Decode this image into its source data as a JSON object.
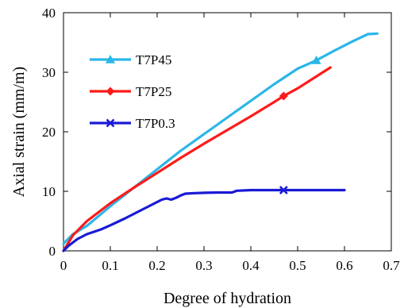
{
  "chart_data": {
    "type": "line",
    "xlabel": "Degree of hydration",
    "ylabel": "Axial strain (mm/m)",
    "xlim": [
      0,
      0.7
    ],
    "ylim": [
      0,
      40
    ],
    "xticks": [
      "0",
      "0.1",
      "0.2",
      "0.3",
      "0.4",
      "0.5",
      "0.6",
      "0.7"
    ],
    "yticks": [
      "0",
      "10",
      "20",
      "30",
      "40"
    ],
    "grid": false,
    "legend_position": "upper-left",
    "series": [
      {
        "name": "T7P45",
        "color": "#2bb6e8",
        "marker": "triangle",
        "marker_x": [
          0.54
        ],
        "x": [
          0,
          0.02,
          0.05,
          0.1,
          0.15,
          0.2,
          0.25,
          0.3,
          0.35,
          0.4,
          0.45,
          0.5,
          0.54,
          0.58,
          0.62,
          0.65,
          0.67
        ],
        "y": [
          1.2,
          2.8,
          4.2,
          7.5,
          10.6,
          13.7,
          16.8,
          19.6,
          22.4,
          25.2,
          28.0,
          30.6,
          32.0,
          33.7,
          35.3,
          36.4,
          36.5
        ]
      },
      {
        "name": "T7P25",
        "color": "#ff1a1a",
        "marker": "diamond",
        "marker_x": [
          0.47
        ],
        "x": [
          0,
          0.02,
          0.05,
          0.1,
          0.15,
          0.2,
          0.25,
          0.3,
          0.35,
          0.4,
          0.45,
          0.47,
          0.5,
          0.55,
          0.57
        ],
        "y": [
          0,
          2.6,
          5.0,
          8.0,
          10.6,
          13.1,
          15.6,
          18.0,
          20.3,
          22.6,
          25.0,
          26.0,
          27.3,
          29.8,
          30.8
        ]
      },
      {
        "name": "T7P0.3",
        "color": "#1a1ad6",
        "marker": "x",
        "marker_x": [
          0.47
        ],
        "x": [
          0,
          0.01,
          0.03,
          0.05,
          0.08,
          0.1,
          0.13,
          0.16,
          0.19,
          0.21,
          0.22,
          0.23,
          0.24,
          0.25,
          0.26,
          0.28,
          0.3,
          0.33,
          0.36,
          0.37,
          0.4,
          0.47,
          0.5,
          0.6
        ],
        "y": [
          0,
          0.8,
          2.0,
          2.8,
          3.6,
          4.3,
          5.4,
          6.6,
          7.8,
          8.6,
          8.8,
          8.6,
          8.9,
          9.3,
          9.6,
          9.7,
          9.75,
          9.8,
          9.8,
          10.1,
          10.2,
          10.2,
          10.2,
          10.2
        ]
      }
    ]
  }
}
